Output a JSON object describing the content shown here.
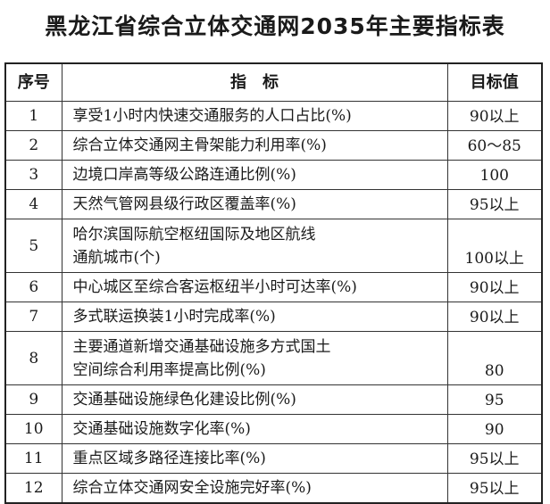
{
  "title": "黑龙江省综合立体交通网2035年主要指标表",
  "table": {
    "header": [
      "序号",
      "指　标",
      "目标值"
    ],
    "rows": [
      {
        "no": "1",
        "indicator": [
          "享受1小时内快速交通服务的人口占比(%)"
        ],
        "target": "90以上"
      },
      {
        "no": "2",
        "indicator": [
          "综合立体交通网主骨架能力利用率(%)"
        ],
        "target": "60～85"
      },
      {
        "no": "3",
        "indicator": [
          "边境口岸高等级公路连通比例(%)"
        ],
        "target": "100"
      },
      {
        "no": "4",
        "indicator": [
          "天然气管网县级行政区覆盖率(%)"
        ],
        "target": "95以上"
      },
      {
        "no": "5",
        "indicator": [
          "哈尔滨国际航空枢纽国际及地区航线",
          "通航城市(个)"
        ],
        "target": "100以上"
      },
      {
        "no": "6",
        "indicator": [
          "中心城区至综合客运枢纽半小时可达率(%)"
        ],
        "target": "90以上"
      },
      {
        "no": "7",
        "indicator": [
          "多式联运换装1小时完成率(%)"
        ],
        "target": "90以上"
      },
      {
        "no": "8",
        "indicator": [
          "主要通道新增交通基础设施多方式国土",
          "空间综合利用率提高比例(%)"
        ],
        "target": "80"
      },
      {
        "no": "9",
        "indicator": [
          "交通基础设施绿色化建设比例(%)"
        ],
        "target": "95"
      },
      {
        "no": "10",
        "indicator": [
          "交通基础设施数字化率(%)"
        ],
        "target": "90"
      },
      {
        "no": "11",
        "indicator": [
          "重点区域多路径连接比率(%)"
        ],
        "target": "95以上"
      },
      {
        "no": "12",
        "indicator": [
          "综合立体交通网安全设施完好率(%)"
        ],
        "target": "95以上"
      }
    ]
  }
}
